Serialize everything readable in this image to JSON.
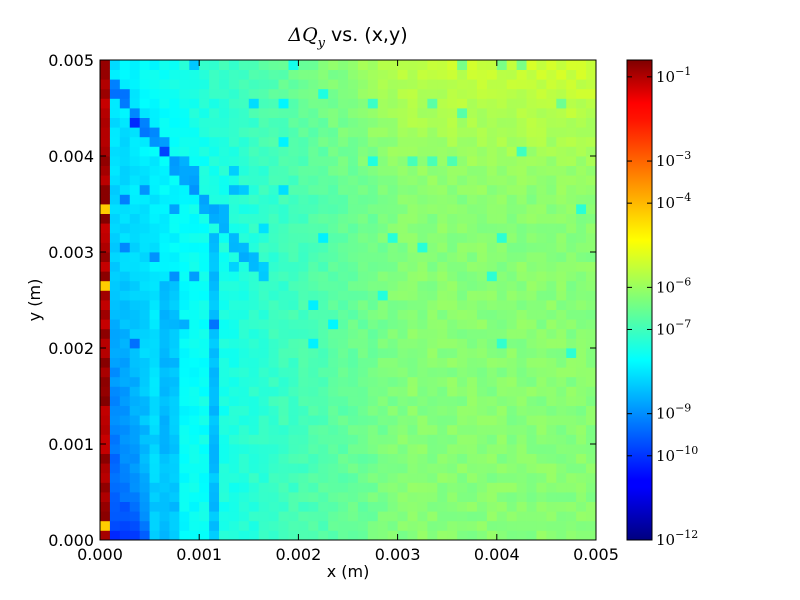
{
  "chart_data": {
    "type": "heatmap",
    "title_prefix": "ΔQ",
    "title_sub": "y",
    "title_suffix": " vs. (x,y)",
    "xlabel": "x (m)",
    "ylabel": "y (m)",
    "xlim": [
      0.0,
      0.005
    ],
    "ylim": [
      0.0,
      0.005
    ],
    "xticks": [
      {
        "value": 0.0,
        "label": "0.000"
      },
      {
        "value": 0.001,
        "label": "0.001"
      },
      {
        "value": 0.002,
        "label": "0.002"
      },
      {
        "value": 0.003,
        "label": "0.003"
      },
      {
        "value": 0.004,
        "label": "0.004"
      },
      {
        "value": 0.005,
        "label": "0.005"
      }
    ],
    "yticks": [
      {
        "value": 0.0,
        "label": "0.000"
      },
      {
        "value": 0.001,
        "label": "0.001"
      },
      {
        "value": 0.002,
        "label": "0.002"
      },
      {
        "value": 0.003,
        "label": "0.003"
      },
      {
        "value": 0.004,
        "label": "0.004"
      },
      {
        "value": 0.005,
        "label": "0.005"
      }
    ],
    "colorbar": {
      "scale": "log",
      "colormap": "jet",
      "range_exponent": [
        -12,
        -0.6
      ],
      "ticks": [
        {
          "exponent": -1,
          "base": "10",
          "exp_label": "−1"
        },
        {
          "exponent": -3,
          "base": "10",
          "exp_label": "−3"
        },
        {
          "exponent": -4,
          "base": "10",
          "exp_label": "−4"
        },
        {
          "exponent": -6,
          "base": "10",
          "exp_label": "−6"
        },
        {
          "exponent": -7,
          "base": "10",
          "exp_label": "−7"
        },
        {
          "exponent": -9,
          "base": "10",
          "exp_label": "−9"
        },
        {
          "exponent": -10,
          "base": "10",
          "exp_label": "−10"
        },
        {
          "exponent": -12,
          "base": "10",
          "exp_label": "−12"
        }
      ]
    },
    "grid": false,
    "field": {
      "nx": 50,
      "ny": 50,
      "edge_column_exponent": -1,
      "bulk_exponent_left": -8.3,
      "bulk_exponent_right": -6.2,
      "blue_region_exponent": -9.3,
      "min_exponent": -12
    }
  }
}
